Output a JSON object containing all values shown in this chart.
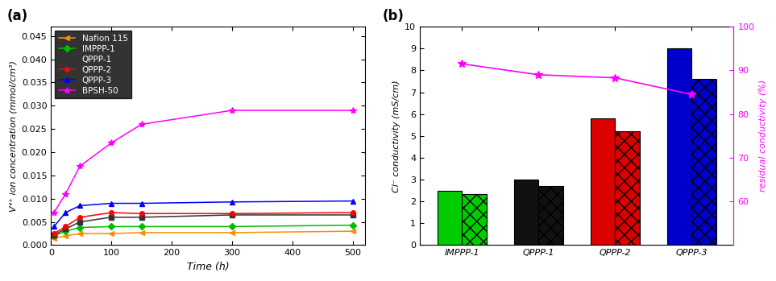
{
  "panel_a": {
    "title": "(a)",
    "xlabel": "Time (h)",
    "ylabel": "V⁴⁺ ion concentration (mmol/cm³)",
    "xlim": [
      0,
      520
    ],
    "ylim": [
      0,
      0.047
    ],
    "xticks": [
      0,
      100,
      200,
      300,
      400,
      500
    ],
    "yticks": [
      0.0,
      0.005,
      0.01,
      0.015,
      0.02,
      0.025,
      0.03,
      0.035,
      0.04,
      0.045
    ],
    "series": {
      "Nafion 115": {
        "color": "darkorange",
        "marker": "<",
        "x": [
          5,
          24,
          48,
          100,
          150,
          300,
          500
        ],
        "y": [
          0.0015,
          0.002,
          0.0025,
          0.0025,
          0.0027,
          0.0027,
          0.003
        ]
      },
      "IMPPP-1": {
        "color": "#00bb00",
        "marker": "D",
        "x": [
          5,
          24,
          48,
          100,
          150,
          300,
          500
        ],
        "y": [
          0.002,
          0.003,
          0.0038,
          0.004,
          0.004,
          0.004,
          0.0043
        ]
      },
      "QPPP-1": {
        "color": "#333333",
        "marker": "s",
        "x": [
          5,
          24,
          48,
          100,
          150,
          300,
          500
        ],
        "y": [
          0.0022,
          0.0035,
          0.005,
          0.006,
          0.006,
          0.0065,
          0.0065
        ]
      },
      "QPPP-2": {
        "color": "red",
        "marker": "o",
        "x": [
          5,
          24,
          48,
          100,
          150,
          300,
          500
        ],
        "y": [
          0.0025,
          0.004,
          0.006,
          0.007,
          0.0068,
          0.0068,
          0.007
        ]
      },
      "QPPP-3": {
        "color": "blue",
        "marker": "^",
        "x": [
          5,
          24,
          48,
          100,
          150,
          300,
          500
        ],
        "y": [
          0.004,
          0.007,
          0.0085,
          0.009,
          0.009,
          0.0093,
          0.0095
        ]
      },
      "BPSH-50": {
        "color": "magenta",
        "marker": "*",
        "x": [
          5,
          24,
          48,
          100,
          150,
          300,
          500
        ],
        "y": [
          0.007,
          0.011,
          0.017,
          0.022,
          0.026,
          0.029,
          0.029
        ]
      }
    }
  },
  "panel_b": {
    "title": "(b)",
    "ylabel_left": "Cl⁻ conductivity (mS/cm)",
    "ylabel_right": "residual conductivity (%)",
    "ylim_left": [
      0,
      10
    ],
    "ylim_right": [
      50,
      100
    ],
    "yticks_left": [
      0,
      1,
      2,
      3,
      4,
      5,
      6,
      7,
      8,
      9,
      10
    ],
    "yticks_right": [
      60,
      70,
      80,
      90,
      100
    ],
    "categories": [
      "IMPPP-1",
      "QPPP-1",
      "QPPP-2",
      "QPPP-3"
    ],
    "bar_initial": [
      2.5,
      3.0,
      5.8,
      9.0
    ],
    "bar_final": [
      2.35,
      2.7,
      5.2,
      7.6
    ],
    "bar_colors": [
      "#00cc00",
      "#111111",
      "#dd0000",
      "#0000cc"
    ],
    "line_y": [
      91.5,
      89.0,
      88.3,
      84.5
    ],
    "line_color": "magenta",
    "line_marker": "*"
  }
}
